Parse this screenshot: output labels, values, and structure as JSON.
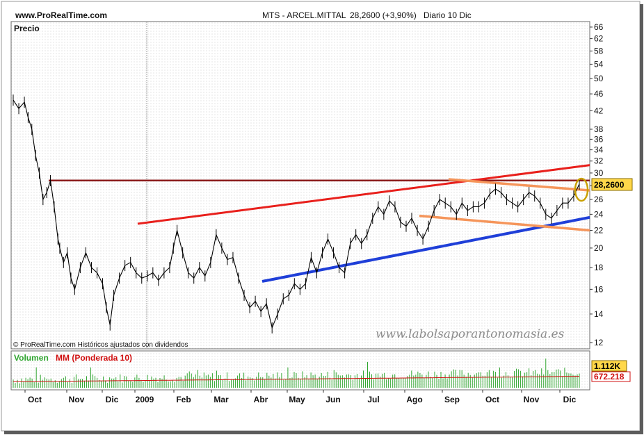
{
  "header": {
    "site": "www.ProRealTime.com",
    "instrument": "MTS - ARCEL.MITTAL",
    "last_change": "28,2600 (+3,90%)",
    "period": "Diario  10 Dic"
  },
  "price_panel": {
    "label": "Precio",
    "copyright": "© ProRealTime.com  Históricos ajustados con dividendos",
    "watermark": "www.labolsaporantonomasia.es",
    "last_price_tag": "28,2600"
  },
  "volume_panel": {
    "label_volume": "Volumen",
    "label_ma": "MM (Ponderada 10)",
    "volume_tag": "1.112K",
    "ma_tag": "672.218"
  },
  "colors": {
    "resistance_dark_red": "#8b1a1a",
    "upper_channel_red": "#e8201c",
    "support_blue": "#1f3fd8",
    "triangle_orange": "#f5955a",
    "price_line": "#000000",
    "volume_bars": "#2fa52f",
    "volume_ma": "#d01010",
    "tag_yellow": "#ffd84a",
    "highlight_circle": "#c9a000"
  },
  "chart_data": {
    "type": "line",
    "scale": "log",
    "ylim": [
      11.6,
      68
    ],
    "y_ticks": [
      12,
      14,
      16,
      18,
      20,
      22,
      24,
      26,
      28,
      30,
      32,
      34,
      36,
      38,
      42,
      46,
      50,
      54,
      58,
      62,
      66
    ],
    "x_labels": [
      "Oct",
      "Nov",
      "Dic",
      "2009",
      "Feb",
      "Mar",
      "Abr",
      "May",
      "Jun",
      "Jul",
      "Ago",
      "Sep",
      "Oct",
      "Nov",
      "Dic"
    ],
    "series": [
      {
        "x": [
          0,
          3,
          6,
          8,
          10,
          12,
          14,
          16,
          18,
          20,
          22,
          24,
          25,
          27,
          29,
          31,
          33,
          36,
          39,
          42,
          45,
          48,
          50,
          52,
          54,
          57,
          60,
          63,
          66,
          69,
          72,
          75,
          78,
          81,
          84,
          86,
          88,
          91,
          94,
          97,
          100,
          103,
          106,
          109,
          112,
          115,
          118,
          121,
          124,
          127,
          130,
          133,
          136,
          139,
          142,
          145,
          148,
          151,
          154,
          157,
          160,
          163,
          166,
          169,
          172,
          175,
          178,
          181,
          184,
          187,
          190,
          193,
          196,
          199,
          202,
          205,
          208,
          211,
          214,
          217,
          220,
          223,
          226,
          229,
          232,
          235,
          238,
          241,
          244,
          247,
          250,
          253,
          256,
          259,
          262,
          265,
          268,
          271,
          274,
          277,
          280,
          283,
          286,
          289,
          292,
          295,
          298,
          301,
          304
        ],
        "values": [
          44.5,
          42.5,
          44,
          40.5,
          38,
          33,
          30,
          26,
          27,
          28.8,
          25,
          21,
          20,
          18.5,
          19.5,
          17,
          16,
          18,
          19.5,
          18,
          17.5,
          16.5,
          14.5,
          13.2,
          15.5,
          17,
          18.2,
          18.5,
          17.5,
          17,
          17.2,
          17.5,
          16.8,
          17.5,
          18,
          20,
          22,
          19.5,
          17.5,
          17,
          18,
          17.2,
          18.5,
          21.5,
          20,
          18.8,
          19,
          17,
          15.5,
          14.5,
          15,
          14.2,
          14.8,
          13,
          14,
          15.2,
          15.5,
          16.5,
          16,
          16.5,
          19,
          17.5,
          19.5,
          21,
          19.5,
          18,
          17.5,
          20.5,
          21.5,
          20.5,
          21.5,
          23.5,
          25,
          24,
          25.8,
          25,
          23,
          22.5,
          23.5,
          22,
          21,
          22.5,
          24.5,
          26,
          25.5,
          25,
          24,
          25.5,
          24.5,
          25,
          25,
          25.5,
          26.8,
          27.5,
          27,
          26,
          25.5,
          25,
          26,
          27,
          26.5,
          25.5,
          24,
          23.5,
          24.5,
          25.5,
          25.5,
          26.5,
          28.26
        ]
      }
    ],
    "annotations": {
      "horizontal_resistance": 28.8,
      "upper_channel_line": {
        "from": 22.8,
        "to": 31.3
      },
      "support_line": {
        "from": 16.7,
        "to": 23.6
      },
      "triangle_upper_line": {
        "from": 29,
        "to": 27.3
      },
      "triangle_lower_line": {
        "from": 23.8,
        "to": 22
      }
    },
    "volume": {
      "unit": "K",
      "last_volume": "1.112K",
      "moving_average_last": "672.218"
    }
  }
}
